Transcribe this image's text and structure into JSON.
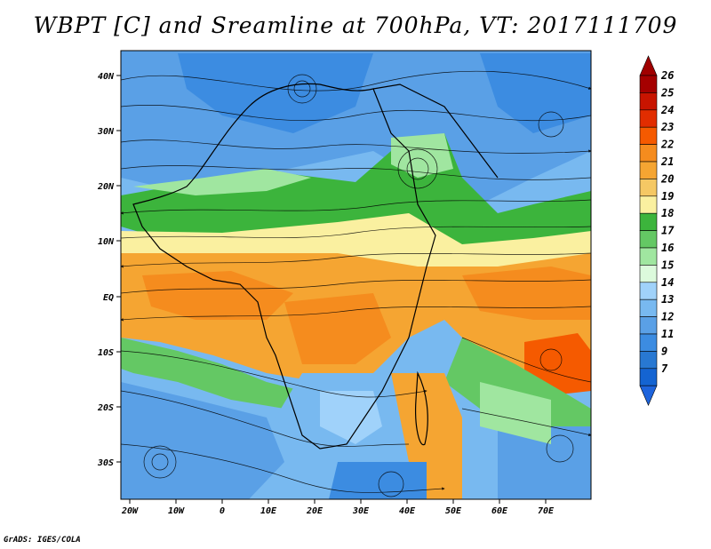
{
  "title": "WBPT [C] and Sreamline at 700hPa, VT: 2017111709",
  "credit": "GrADS: IGES/COLA",
  "lat_labels": [
    "40N",
    "30N",
    "20N",
    "10N",
    "EQ",
    "10S",
    "20S",
    "30S"
  ],
  "lon_labels": [
    "20W",
    "10W",
    "0",
    "10E",
    "20E",
    "30E",
    "40E",
    "50E",
    "60E",
    "70E"
  ],
  "colorbar": {
    "levels": [
      "26",
      "25",
      "24",
      "23",
      "22",
      "21",
      "20",
      "19",
      "18",
      "17",
      "16",
      "15",
      "14",
      "13",
      "12",
      "11",
      "9",
      "7"
    ],
    "colors": [
      "#a50000",
      "#c81400",
      "#e12d00",
      "#f55a00",
      "#f58c1e",
      "#f5a532",
      "#f5c864",
      "#faf0a0",
      "#3cb43c",
      "#64c864",
      "#a0e6a0",
      "#dcfadc",
      "#a0d2fa",
      "#78b9f0",
      "#5aa0e6",
      "#3c8ce1",
      "#2878d2",
      "#1464d2"
    ],
    "top_arrow_color": "#a00000",
    "bottom_arrow_color": "#1e64dc"
  }
}
